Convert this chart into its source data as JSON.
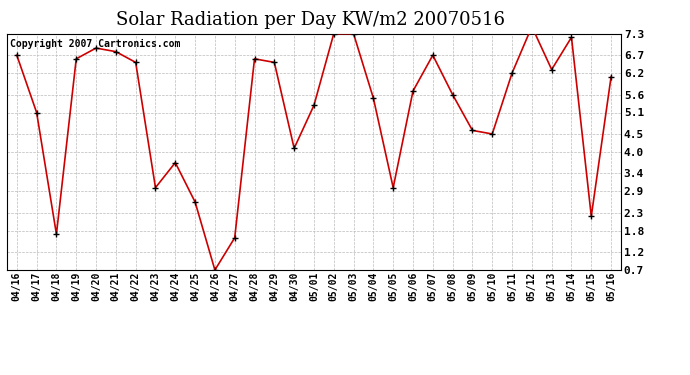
{
  "title": "Solar Radiation per Day KW/m2 20070516",
  "copyright": "Copyright 2007 Cartronics.com",
  "labels": [
    "04/16",
    "04/17",
    "04/18",
    "04/19",
    "04/20",
    "04/21",
    "04/22",
    "04/23",
    "04/24",
    "04/25",
    "04/26",
    "04/27",
    "04/28",
    "04/29",
    "04/30",
    "05/01",
    "05/02",
    "05/03",
    "05/04",
    "05/05",
    "05/06",
    "05/07",
    "05/08",
    "05/09",
    "05/10",
    "05/11",
    "05/12",
    "05/13",
    "05/14",
    "05/15",
    "05/16"
  ],
  "values": [
    6.7,
    5.1,
    1.7,
    6.6,
    6.9,
    6.8,
    6.5,
    3.0,
    3.7,
    2.6,
    0.7,
    1.6,
    6.6,
    6.5,
    4.1,
    5.3,
    7.3,
    7.3,
    5.5,
    3.0,
    5.7,
    6.7,
    5.6,
    4.6,
    4.5,
    6.2,
    7.5,
    6.3,
    7.2,
    2.2,
    6.1
  ],
  "line_color": "#cc0000",
  "marker_color": "#000000",
  "bg_color": "#ffffff",
  "plot_bg_color": "#ffffff",
  "grid_color": "#bbbbbb",
  "ylim": [
    0.7,
    7.3
  ],
  "yticks": [
    7.3,
    6.7,
    6.2,
    5.6,
    5.1,
    4.5,
    4.0,
    3.4,
    2.9,
    2.3,
    1.8,
    1.2,
    0.7
  ],
  "title_fontsize": 13,
  "copyright_fontsize": 7,
  "tick_fontsize": 7,
  "ytick_fontsize": 8
}
